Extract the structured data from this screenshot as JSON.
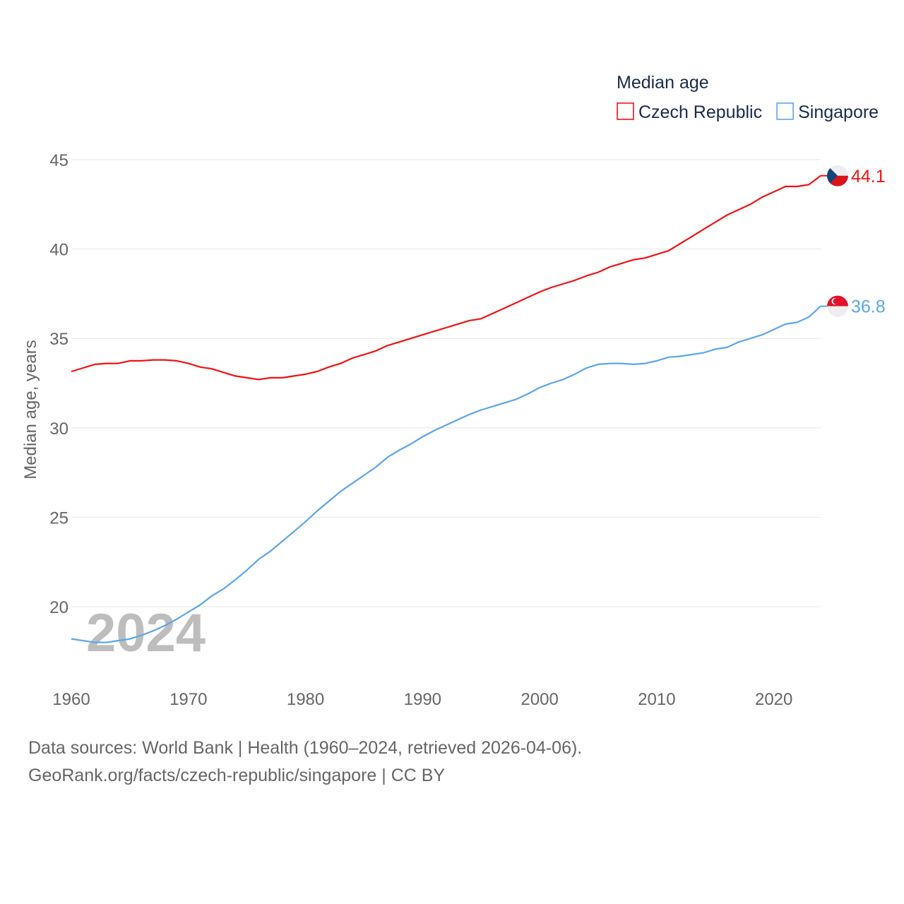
{
  "chart_data": {
    "type": "line",
    "title": "Median age",
    "xlabel": "",
    "ylabel": "Median age, years",
    "xlim": [
      1960,
      2024
    ],
    "ylim": [
      16.5,
      46
    ],
    "yticks": [
      20,
      25,
      30,
      35,
      40,
      45
    ],
    "xticks": [
      1960,
      1970,
      1980,
      1990,
      2000,
      2010,
      2020
    ],
    "grid": true,
    "legend_position": "top-right",
    "year_watermark": "2024",
    "x": [
      1960,
      1961,
      1962,
      1963,
      1964,
      1965,
      1966,
      1967,
      1968,
      1969,
      1970,
      1971,
      1972,
      1973,
      1974,
      1975,
      1976,
      1977,
      1978,
      1979,
      1980,
      1981,
      1982,
      1983,
      1984,
      1985,
      1986,
      1987,
      1988,
      1989,
      1990,
      1991,
      1992,
      1993,
      1994,
      1995,
      1996,
      1997,
      1998,
      1999,
      2000,
      2001,
      2002,
      2003,
      2004,
      2005,
      2006,
      2007,
      2008,
      2009,
      2010,
      2011,
      2012,
      2013,
      2014,
      2015,
      2016,
      2017,
      2018,
      2019,
      2020,
      2021,
      2022,
      2023,
      2024
    ],
    "series": [
      {
        "name": "Czech Republic",
        "color": "#f21313",
        "end_label": "44.1",
        "flag": "czech-republic",
        "values": [
          33.15,
          33.35,
          33.55,
          33.6,
          33.6,
          33.75,
          33.75,
          33.8,
          33.8,
          33.75,
          33.6,
          33.4,
          33.3,
          33.1,
          32.9,
          32.8,
          32.7,
          32.8,
          32.8,
          32.9,
          33.0,
          33.15,
          33.4,
          33.6,
          33.9,
          34.1,
          34.3,
          34.6,
          34.8,
          35.0,
          35.2,
          35.4,
          35.6,
          35.8,
          36.0,
          36.1,
          36.4,
          36.7,
          37.0,
          37.3,
          37.6,
          37.85,
          38.05,
          38.25,
          38.5,
          38.7,
          39.0,
          39.2,
          39.4,
          39.5,
          39.7,
          39.9,
          40.3,
          40.7,
          41.1,
          41.5,
          41.9,
          42.2,
          42.5,
          42.9,
          43.2,
          43.5,
          43.5,
          43.6,
          44.1
        ]
      },
      {
        "name": "Singapore",
        "color": "#5ba6ec",
        "end_label": "36.8",
        "flag": "singapore",
        "values": [
          18.2,
          18.1,
          18.0,
          18.0,
          18.1,
          18.2,
          18.4,
          18.65,
          18.95,
          19.3,
          19.7,
          20.1,
          20.6,
          21.0,
          21.5,
          22.05,
          22.65,
          23.1,
          23.65,
          24.2,
          24.75,
          25.35,
          25.9,
          26.45,
          26.9,
          27.35,
          27.8,
          28.35,
          28.75,
          29.1,
          29.5,
          29.85,
          30.15,
          30.45,
          30.75,
          31.0,
          31.2,
          31.4,
          31.6,
          31.9,
          32.25,
          32.5,
          32.7,
          33.0,
          33.35,
          33.55,
          33.6,
          33.6,
          33.55,
          33.6,
          33.75,
          33.95,
          34.0,
          34.1,
          34.2,
          34.4,
          34.5,
          34.8,
          35.0,
          35.2,
          35.5,
          35.8,
          35.9,
          36.2,
          36.8
        ]
      }
    ]
  },
  "footer": {
    "line1": "Data sources: World Bank | Health (1960–2024, retrieved 2026-04-06).",
    "line2": "GeoRank.org/facts/czech-republic/singapore | CC BY"
  }
}
